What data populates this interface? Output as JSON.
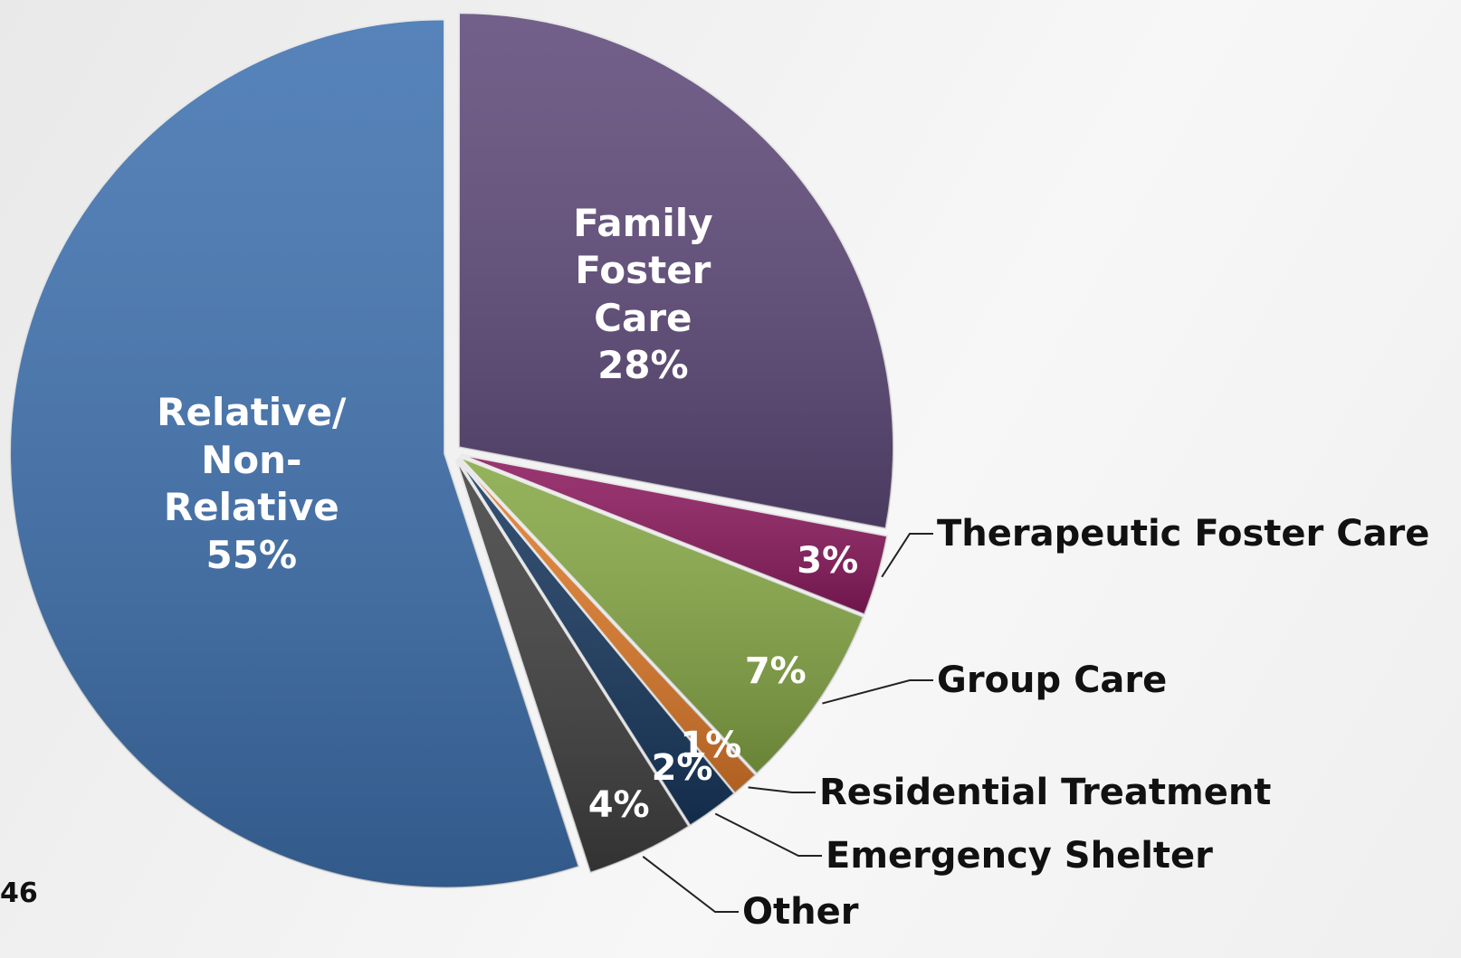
{
  "chart_data": {
    "type": "pie",
    "categories": [
      "Family Foster Care",
      "Therapeutic Foster Care",
      "Group Care",
      "Residential Treatment",
      "Emergency Shelter",
      "Other",
      "Relative/ Non-Relative"
    ],
    "values": [
      28,
      3,
      7,
      1,
      2,
      4,
      55
    ],
    "value_labels": [
      "28%",
      "3%",
      "7%",
      "1%",
      "2%",
      "4%",
      "55%"
    ],
    "colors": [
      "#5f4a7a",
      "#8c1a5e",
      "#86a845",
      "#e07b2a",
      "#17375e",
      "#404040",
      "#3f72b0"
    ],
    "slide_number": "46"
  }
}
